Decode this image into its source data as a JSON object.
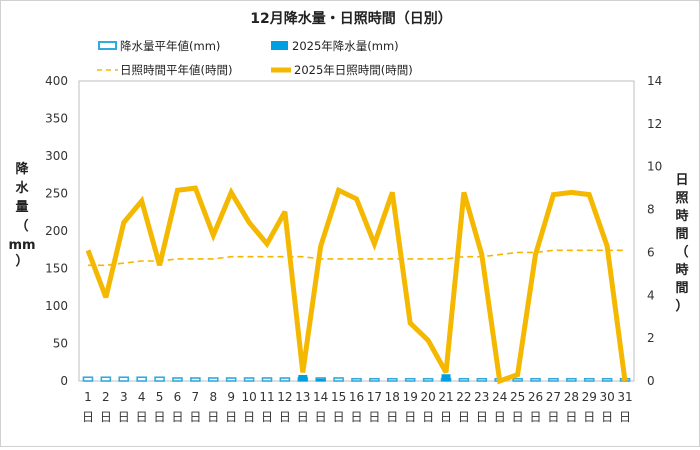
{
  "chart_data": {
    "type": "bar+line",
    "title": "12月降水量・日照時間（日別）",
    "legend": {
      "placement": "top",
      "items": [
        {
          "label": "降水量平年値(mm)",
          "style": "outlined-bar",
          "color": "#33aadd"
        },
        {
          "label": "2025年降水量(mm)",
          "style": "filled-bar",
          "color": "#00a0e0"
        },
        {
          "label": "日照時間平年値(時間)",
          "style": "dashed-line",
          "color": "#f5b800"
        },
        {
          "label": "2025年日照時間(時間)",
          "style": "thick-line",
          "color": "#f5b800"
        }
      ]
    },
    "ylabel_left": [
      "降",
      "水",
      "量",
      "（",
      "mm",
      "）"
    ],
    "ylabel_right": [
      "日",
      "照",
      "時",
      "間",
      "（",
      "時",
      "間",
      "）"
    ],
    "y_left": {
      "min": 0,
      "max": 400,
      "step": 50
    },
    "y_right": {
      "min": 0,
      "max": 14,
      "step": 2
    },
    "categories": [
      "1",
      "2",
      "3",
      "4",
      "5",
      "6",
      "7",
      "8",
      "9",
      "10",
      "11",
      "12",
      "13",
      "14",
      "15",
      "16",
      "17",
      "18",
      "19",
      "20",
      "21",
      "22",
      "23",
      "24",
      "25",
      "26",
      "27",
      "28",
      "29",
      "30",
      "31"
    ],
    "category_suffix": "日",
    "series": [
      {
        "name": "降水量平年値(mm)",
        "type": "bar-outline",
        "axis": "left",
        "color": "#33aadd",
        "values": [
          5,
          5,
          5,
          5,
          5,
          4,
          4,
          4,
          4,
          4,
          4,
          4,
          4,
          4,
          4,
          3,
          3,
          3,
          3,
          3,
          3,
          3,
          3,
          3,
          3,
          3,
          3,
          3,
          3,
          3,
          3
        ]
      },
      {
        "name": "2025年降水量(mm)",
        "type": "bar",
        "axis": "left",
        "color": "#00a0e0",
        "values": [
          0,
          0,
          0,
          0,
          0,
          0,
          0,
          0,
          0,
          0,
          0,
          0,
          8,
          3,
          0,
          0,
          0,
          0,
          0,
          0,
          9,
          0,
          0,
          0,
          0,
          0,
          0,
          0,
          0,
          0,
          0
        ]
      },
      {
        "name": "日照時間平年値(時間)",
        "type": "dashed-line",
        "axis": "right",
        "color": "#f5b800",
        "values": [
          5.4,
          5.4,
          5.5,
          5.6,
          5.6,
          5.7,
          5.7,
          5.7,
          5.8,
          5.8,
          5.8,
          5.8,
          5.8,
          5.7,
          5.7,
          5.7,
          5.7,
          5.7,
          5.7,
          5.7,
          5.7,
          5.8,
          5.8,
          5.9,
          6.0,
          6.0,
          6.1,
          6.1,
          6.1,
          6.1,
          6.1
        ]
      },
      {
        "name": "2025年日照時間(時間)",
        "type": "line",
        "axis": "right",
        "color": "#f5b800",
        "values": [
          6.1,
          3.9,
          7.4,
          8.4,
          5.4,
          8.9,
          9.0,
          6.8,
          8.8,
          7.4,
          6.4,
          7.9,
          0.4,
          6.3,
          8.9,
          8.5,
          6.4,
          8.8,
          2.7,
          1.9,
          0.4,
          8.8,
          5.9,
          0.0,
          0.3,
          5.9,
          8.7,
          8.8,
          8.7,
          6.3,
          0.0
        ]
      }
    ]
  }
}
